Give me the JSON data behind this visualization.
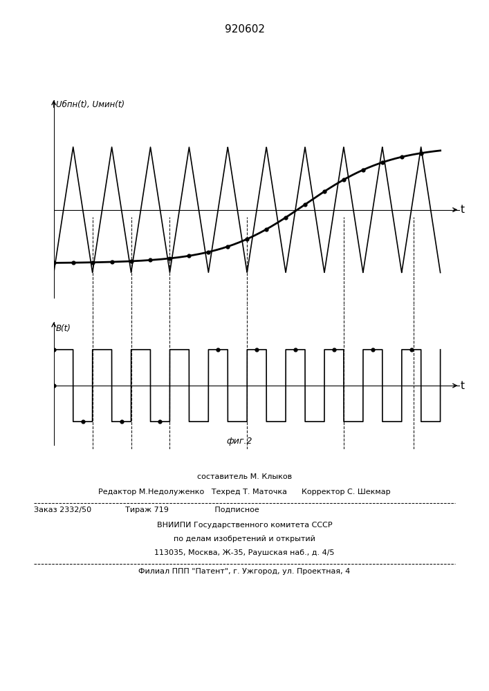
{
  "title": "920602",
  "top_ylabel": "Uбпн(t), Uмин(t)",
  "bottom_ylabel": "B(t)",
  "top_xlabel": "t",
  "bottom_xlabel": "t",
  "fig_caption": "фиг.2",
  "line1": "составитель М. Клыков",
  "line2": "Редактор М.Недолуженко   Техред Т. Маточка      Корректор С. Шекмар",
  "line3": "Заказ 2332/50              Тираж 719                   Подписное",
  "line4": "ВНИИПИ Государственного комитета СССР",
  "line5": "по делам изобретений и открытий",
  "line6": "113035, Москва, Ж-35, Раушская наб., д. 4/5",
  "line7": "Филиал ППП \"Патент\", г. Ужгород, ул. Проектная, 4"
}
